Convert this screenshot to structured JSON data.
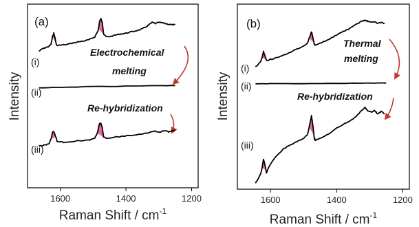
{
  "colors": {
    "peak_fill": "#e8559a",
    "arrow": "#c0392b",
    "trace": "#000000",
    "frame": "#000000"
  },
  "chart_data": [
    {
      "type": "line",
      "panel_label": "(a)",
      "xlabel": "Raman Shift / cm",
      "xlabel_sup": "-1",
      "ylabel": "Intensity",
      "xlim": [
        1700,
        1180
      ],
      "x_ticks": [
        1600,
        1400,
        1200
      ],
      "x_tick_labels": [
        "1600",
        "1400",
        "1200"
      ],
      "annotations": [
        "Electrochemical",
        "melting",
        "Re-hybridization"
      ],
      "series": [
        {
          "label": "(i)",
          "x": [
            1665,
            1655,
            1645,
            1635,
            1628,
            1624,
            1620,
            1616,
            1612,
            1600,
            1580,
            1560,
            1540,
            1520,
            1505,
            1495,
            1485,
            1480,
            1476,
            1472,
            1468,
            1460,
            1445,
            1430,
            1415,
            1400,
            1385,
            1370,
            1355,
            1340,
            1330,
            1320,
            1310,
            1300,
            1290,
            1280,
            1270,
            1260,
            1250
          ],
          "y": [
            0.1,
            0.2,
            0.25,
            0.3,
            0.4,
            0.7,
            0.85,
            0.65,
            0.35,
            0.35,
            0.38,
            0.45,
            0.5,
            0.55,
            0.62,
            0.7,
            0.95,
            1.35,
            1.45,
            1.3,
            0.8,
            0.7,
            0.72,
            0.78,
            0.82,
            0.85,
            0.9,
            0.95,
            1.0,
            1.1,
            1.2,
            1.3,
            1.25,
            1.3,
            1.28,
            1.25,
            1.22,
            1.2,
            1.2
          ],
          "shaded_peaks": [
            [
              1624,
              1610
            ],
            [
              1484,
              1464
            ]
          ]
        },
        {
          "label": "(ii)",
          "x": [
            1665,
            1600,
            1500,
            1400,
            1300,
            1250
          ],
          "y": [
            0.0,
            0.03,
            0.06,
            0.08,
            0.1,
            0.1
          ],
          "shaded_peaks": []
        },
        {
          "label": "(iii)",
          "x": [
            1665,
            1650,
            1635,
            1628,
            1624,
            1620,
            1616,
            1610,
            1590,
            1570,
            1550,
            1530,
            1510,
            1495,
            1486,
            1481,
            1477,
            1473,
            1468,
            1460,
            1440,
            1420,
            1400,
            1380,
            1360,
            1340,
            1320,
            1310,
            1300,
            1290,
            1280,
            1270,
            1260,
            1250
          ],
          "y": [
            0.0,
            0.02,
            0.08,
            0.3,
            0.55,
            0.6,
            0.45,
            0.2,
            0.15,
            0.17,
            0.2,
            0.22,
            0.25,
            0.3,
            0.6,
            0.9,
            0.95,
            0.8,
            0.35,
            0.32,
            0.35,
            0.38,
            0.42,
            0.45,
            0.48,
            0.52,
            0.58,
            0.62,
            0.55,
            0.6,
            0.62,
            0.58,
            0.62,
            0.65
          ],
          "shaded_peaks": [
            [
              1628,
              1614
            ],
            [
              1488,
              1468
            ]
          ]
        }
      ]
    },
    {
      "type": "line",
      "panel_label": "(b)",
      "xlabel": "Raman Shift / cm",
      "xlabel_sup": "-1",
      "ylabel": "Intensity",
      "xlim": [
        1700,
        1180
      ],
      "x_ticks": [
        1600,
        1400,
        1200
      ],
      "x_tick_labels": [
        "1600",
        "1400",
        "1200"
      ],
      "annotations": [
        "Thermal",
        "melting",
        "Re-hybridization"
      ],
      "series": [
        {
          "label": "(i)",
          "x": [
            1645,
            1638,
            1630,
            1625,
            1621,
            1617,
            1612,
            1600,
            1580,
            1560,
            1540,
            1520,
            1500,
            1488,
            1480,
            1476,
            1472,
            1467,
            1460,
            1440,
            1420,
            1400,
            1380,
            1360,
            1340,
            1325,
            1315,
            1305,
            1295,
            1285,
            1275,
            1265,
            1255
          ],
          "y": [
            0.0,
            0.1,
            0.25,
            0.45,
            0.75,
            0.55,
            0.3,
            0.35,
            0.45,
            0.55,
            0.7,
            0.85,
            1.0,
            1.15,
            1.5,
            1.7,
            1.45,
            1.05,
            1.05,
            1.2,
            1.35,
            1.55,
            1.7,
            1.85,
            2.05,
            2.2,
            2.25,
            2.2,
            2.15,
            2.18,
            2.1,
            2.15,
            2.1
          ],
          "shaded_peaks": [
            [
              1625,
              1610
            ],
            [
              1483,
              1460
            ]
          ]
        },
        {
          "label": "(ii)",
          "x": [
            1645,
            1600,
            1500,
            1400,
            1300,
            1250
          ],
          "y": [
            0.0,
            0.01,
            0.02,
            0.03,
            0.04,
            0.04
          ],
          "shaded_peaks": []
        },
        {
          "label": "(iii)",
          "x": [
            1645,
            1638,
            1630,
            1625,
            1621,
            1617,
            1612,
            1600,
            1580,
            1560,
            1540,
            1520,
            1500,
            1488,
            1480,
            1476,
            1472,
            1467,
            1460,
            1440,
            1420,
            1400,
            1380,
            1360,
            1340,
            1325,
            1315,
            1305,
            1295,
            1285,
            1275,
            1265,
            1255
          ],
          "y": [
            0.0,
            0.1,
            0.25,
            0.45,
            0.7,
            0.55,
            0.3,
            0.55,
            0.8,
            1.0,
            1.1,
            1.2,
            1.3,
            1.4,
            1.75,
            1.95,
            1.7,
            1.25,
            1.25,
            1.35,
            1.45,
            1.6,
            1.7,
            1.8,
            1.95,
            2.1,
            2.2,
            2.1,
            2.05,
            2.1,
            2.0,
            2.08,
            2.0
          ],
          "shaded_peaks": [
            [
              1625,
              1610
            ],
            [
              1483,
              1460
            ]
          ]
        }
      ]
    }
  ]
}
